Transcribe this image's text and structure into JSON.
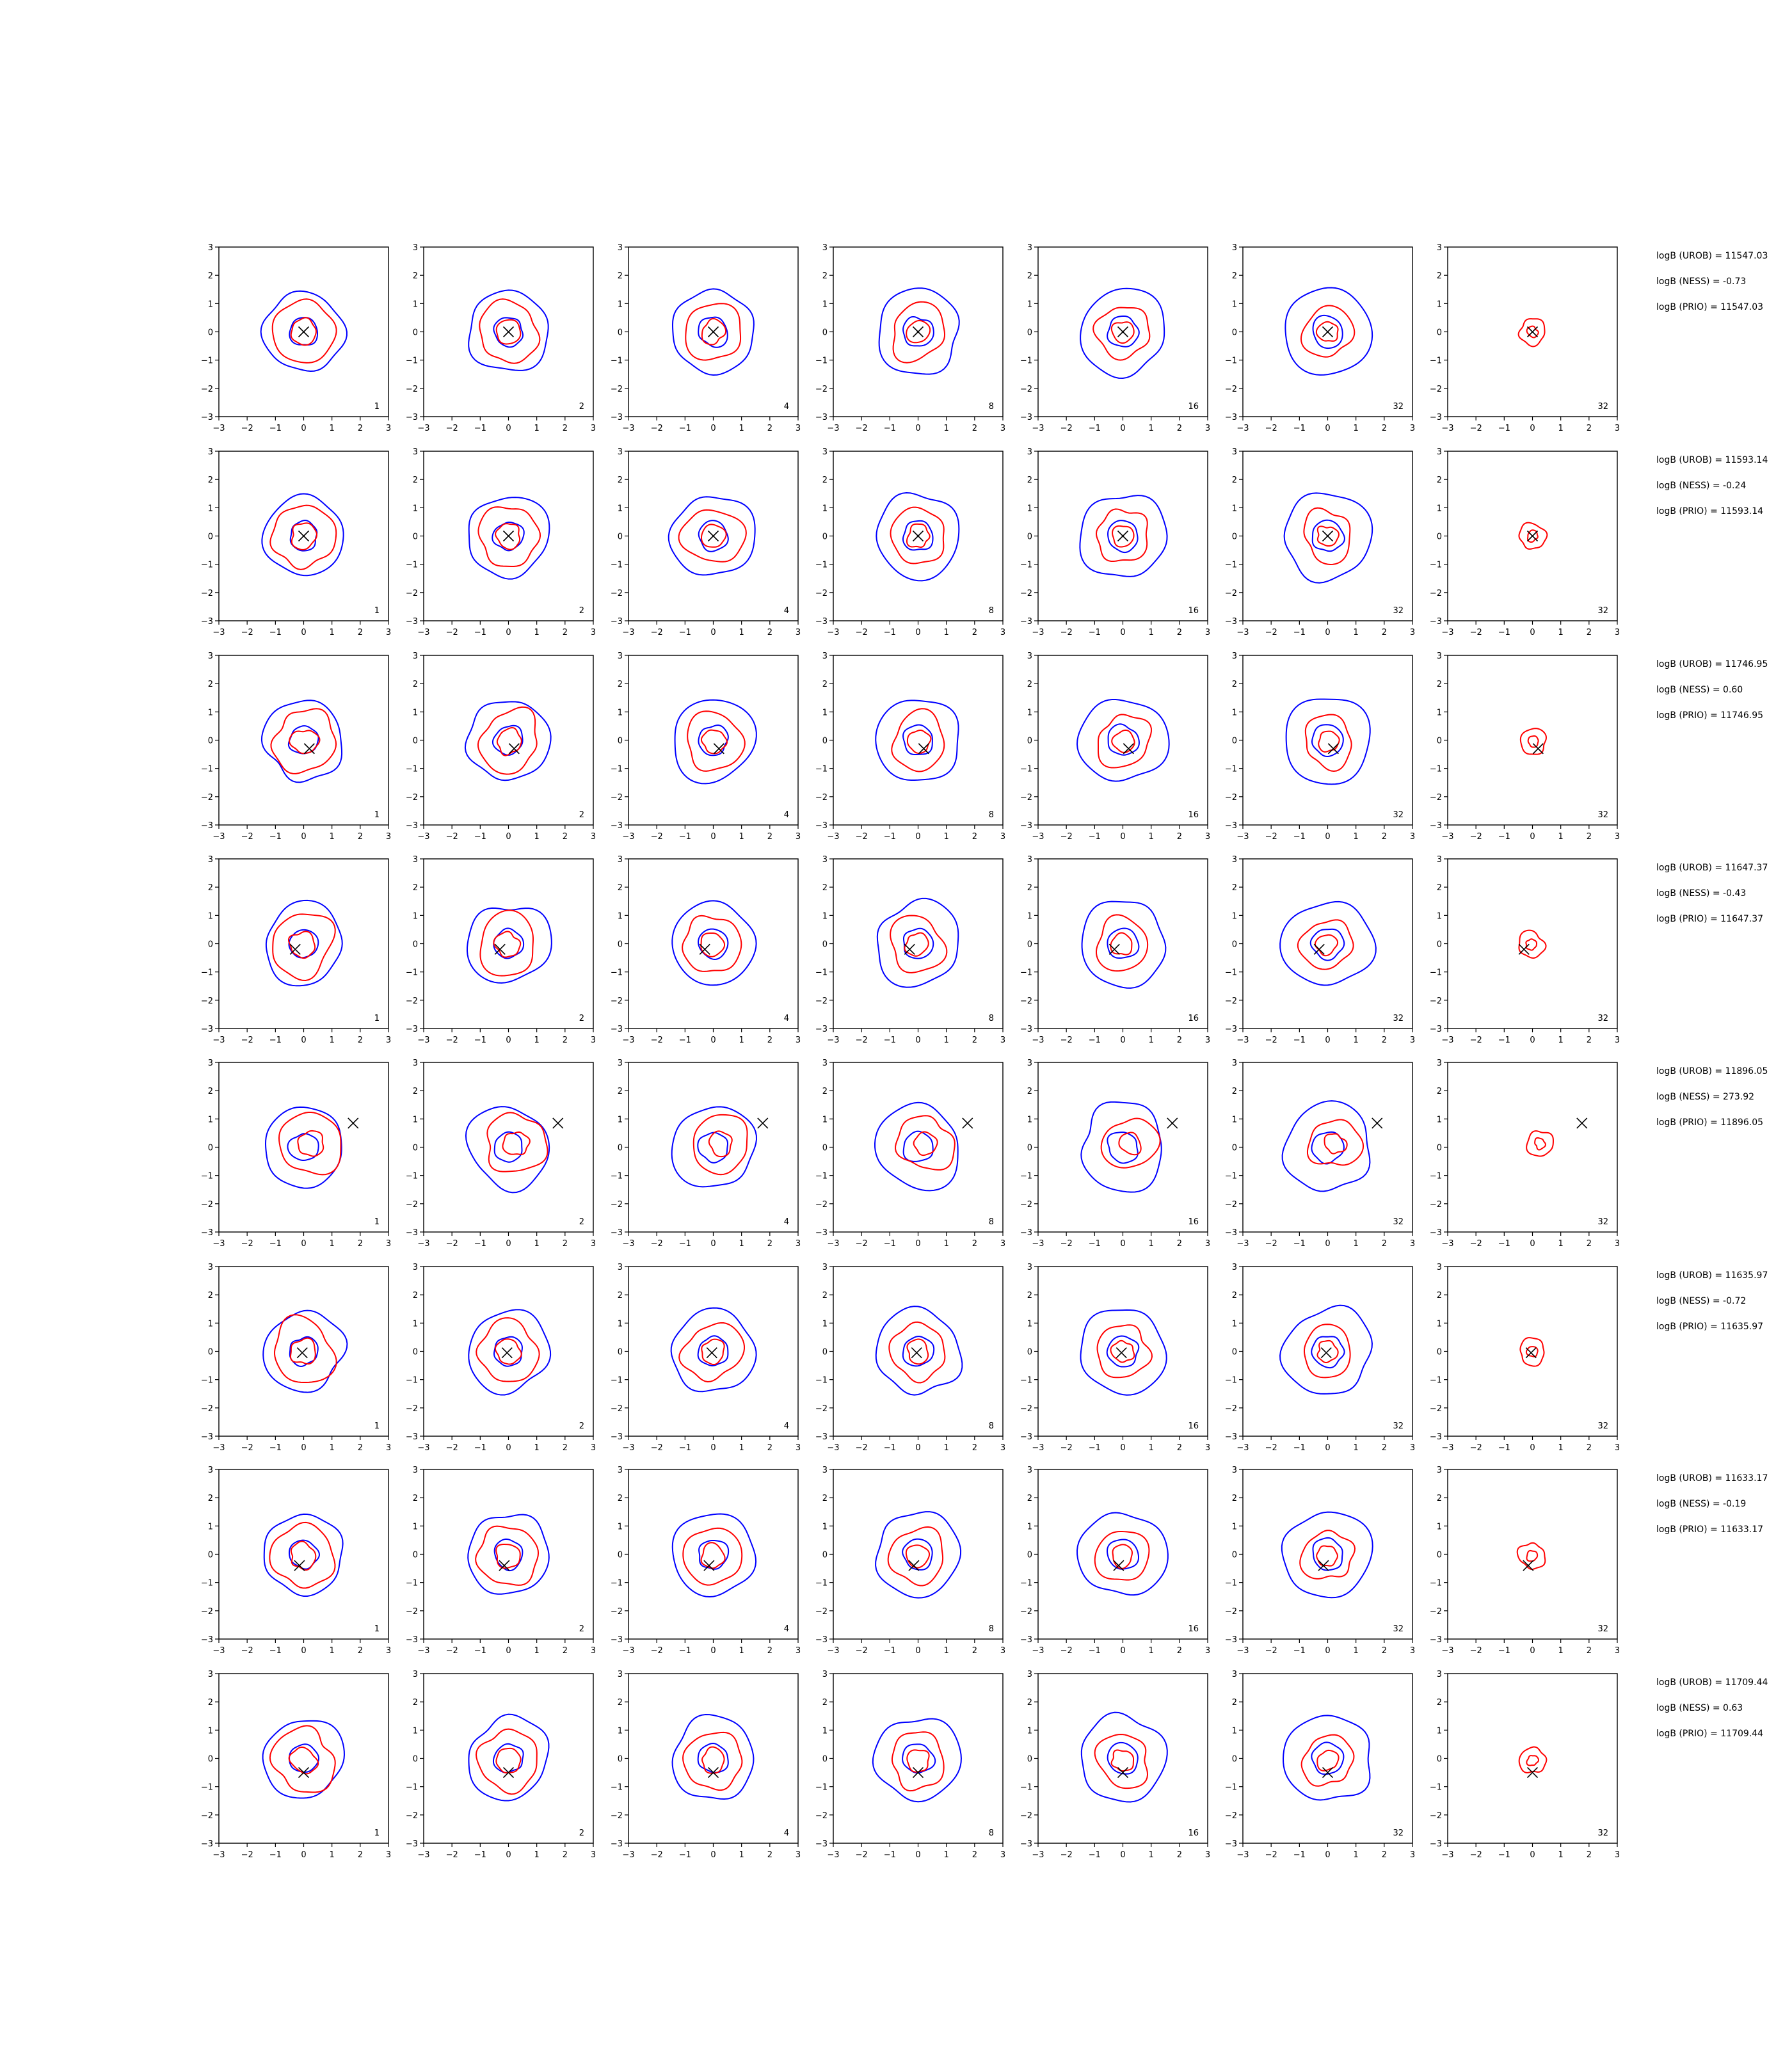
{
  "chart_data": {
    "type": "contour",
    "layout": "8 rows x 7 panels",
    "title": "",
    "xlabel": "",
    "ylabel": "",
    "xlim": [
      -3,
      3
    ],
    "ylim": [
      -3,
      3
    ],
    "xticks": [
      -3,
      -2,
      -1,
      0,
      1,
      2,
      3
    ],
    "yticks": [
      -3,
      -2,
      -1,
      0,
      1,
      2,
      3
    ],
    "grid": false,
    "legend": "none",
    "colors": {
      "reference": "#0000ff",
      "posterior": "#ff0000",
      "truth_marker": "#000000"
    },
    "contour_radii": {
      "reference": [
        0.5,
        1.4
      ],
      "posterior": [
        0.45,
        1.1
      ]
    },
    "panel_labels": [
      "1",
      "2",
      "4",
      "8",
      "16",
      "32",
      "32"
    ],
    "rows": [
      {
        "true_point": [
          0.0,
          0.0
        ],
        "logB_UROB": "logB (UROB) = 11547.03",
        "logB_NESS": "logB (NESS) = -0.73",
        "logB_PRIO": "logB (PRIO) = 11547.03"
      },
      {
        "true_point": [
          0.0,
          0.0
        ],
        "logB_UROB": "logB (UROB) = 11593.14",
        "logB_NESS": "logB (NESS) = -0.24",
        "logB_PRIO": "logB (PRIO) = 11593.14"
      },
      {
        "true_point": [
          0.2,
          -0.3
        ],
        "logB_UROB": "logB (UROB) = 11746.95",
        "logB_NESS": "logB (NESS) = 0.60",
        "logB_PRIO": "logB (PRIO) = 11746.95"
      },
      {
        "true_point": [
          -0.3,
          -0.2
        ],
        "logB_UROB": "logB (UROB) = 11647.37",
        "logB_NESS": "logB (NESS) = -0.43",
        "logB_PRIO": "logB (PRIO) = 11647.37"
      },
      {
        "true_point": [
          1.75,
          0.85
        ],
        "logB_UROB": "logB (UROB) = 11896.05",
        "logB_NESS": "logB (NESS) = 273.92",
        "logB_PRIO": "logB (PRIO) = 11896.05"
      },
      {
        "true_point": [
          -0.05,
          -0.05
        ],
        "logB_UROB": "logB (UROB) = 11635.97",
        "logB_NESS": "logB (NESS) = -0.72",
        "logB_PRIO": "logB (PRIO) = 11635.97"
      },
      {
        "true_point": [
          -0.15,
          -0.4
        ],
        "logB_UROB": "logB (UROB) = 11633.17",
        "logB_NESS": "logB (NESS) = -0.19",
        "logB_PRIO": "logB (PRIO) = 11633.17"
      },
      {
        "true_point": [
          0.0,
          -0.5
        ],
        "logB_UROB": "logB (UROB) = 11709.44",
        "logB_NESS": "logB (NESS) = 0.63",
        "logB_PRIO": "logB (PRIO) = 11709.44"
      }
    ]
  }
}
